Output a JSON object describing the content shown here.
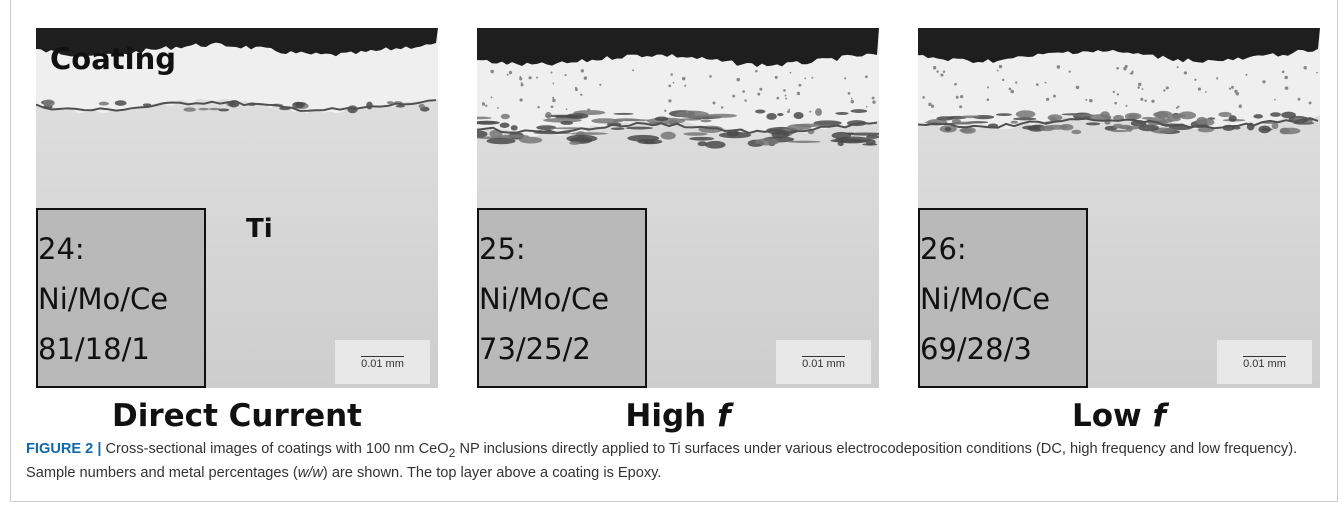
{
  "panels": [
    {
      "sample": "24:",
      "composition_label": "Ni/Mo/Ce",
      "composition": "81/18/1",
      "scale": "0.01 mm",
      "label": "Direct Current",
      "annotations": [
        "Coating",
        "Ti"
      ]
    },
    {
      "sample": "25:",
      "composition_label": "Ni/Mo/Ce",
      "composition": "73/25/2",
      "scale": "0.01 mm",
      "label": "High",
      "label_italic": "f"
    },
    {
      "sample": "26:",
      "composition_label": "Ni/Mo/Ce",
      "composition": "69/28/3",
      "scale": "0.01 mm",
      "label": "Low",
      "label_italic": "f"
    }
  ],
  "caption": {
    "figure": "FIGURE 2 |",
    "text1": "Cross-sectional images of coatings with 100 nm CeO",
    "sub": "2",
    "text2": " NP inclusions directly applied to Ti surfaces under various electrocodeposition conditions (DC, high frequency and low frequency). Sample numbers and metal percentages (",
    "italic": "w/w",
    "text3": ") are shown. The top layer above a coating is Epoxy."
  }
}
